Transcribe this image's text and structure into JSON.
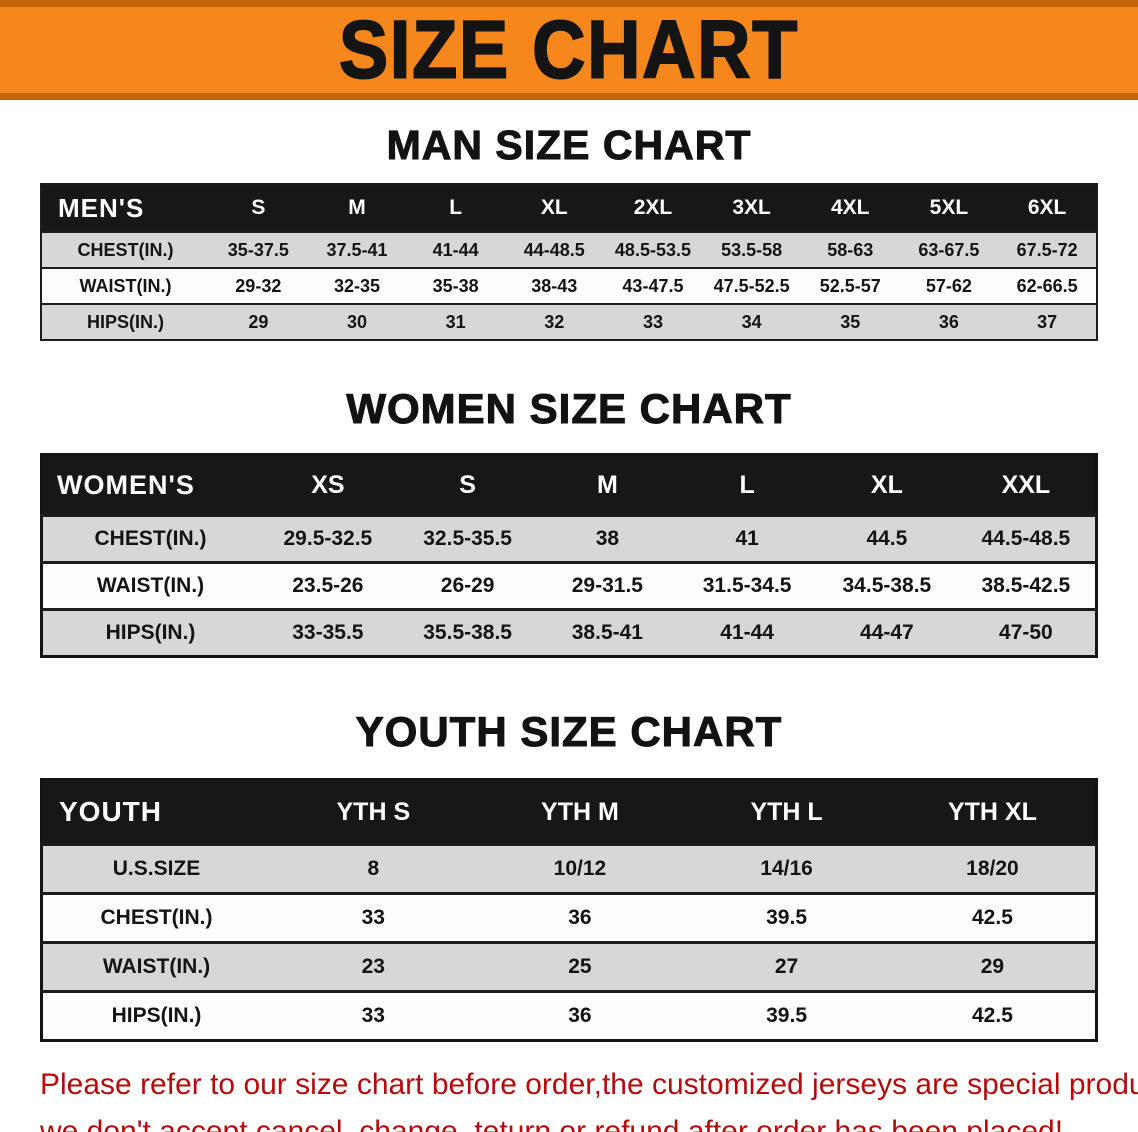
{
  "banner": {
    "title": "SIZE CHART",
    "bg_color": "#f6871d",
    "stripe_color": "#c56708"
  },
  "sections": [
    {
      "heading": "MAN SIZE CHART",
      "header_label": "MEN'S",
      "columns": [
        "S",
        "M",
        "L",
        "XL",
        "2XL",
        "3XL",
        "4XL",
        "5XL",
        "6XL"
      ],
      "rows": [
        {
          "label": "CHEST(IN.)",
          "values": [
            "35-37.5",
            "37.5-41",
            "41-44",
            "44-48.5",
            "48.5-53.5",
            "53.5-58",
            "58-63",
            "63-67.5",
            "67.5-72"
          ]
        },
        {
          "label": "WAIST(IN.)",
          "values": [
            "29-32",
            "32-35",
            "35-38",
            "38-43",
            "43-47.5",
            "47.5-52.5",
            "52.5-57",
            "57-62",
            "62-66.5"
          ]
        },
        {
          "label": "HIPS(IN.)",
          "values": [
            "29",
            "30",
            "31",
            "32",
            "33",
            "34",
            "35",
            "36",
            "37"
          ]
        }
      ]
    },
    {
      "heading": "WOMEN SIZE CHART",
      "header_label": "WOMEN'S",
      "columns": [
        "XS",
        "S",
        "M",
        "L",
        "XL",
        "XXL"
      ],
      "rows": [
        {
          "label": "CHEST(IN.)",
          "values": [
            "29.5-32.5",
            "32.5-35.5",
            "38",
            "41",
            "44.5",
            "44.5-48.5"
          ]
        },
        {
          "label": "WAIST(IN.)",
          "values": [
            "23.5-26",
            "26-29",
            "29-31.5",
            "31.5-34.5",
            "34.5-38.5",
            "38.5-42.5"
          ]
        },
        {
          "label": "HIPS(IN.)",
          "values": [
            "33-35.5",
            "35.5-38.5",
            "38.5-41",
            "41-44",
            "44-47",
            "47-50"
          ]
        }
      ]
    },
    {
      "heading": "YOUTH SIZE CHART",
      "header_label": "YOUTH",
      "columns": [
        "YTH S",
        "YTH M",
        "YTH L",
        "YTH XL"
      ],
      "rows": [
        {
          "label": "U.S.SIZE",
          "values": [
            "8",
            "10/12",
            "14/16",
            "18/20"
          ]
        },
        {
          "label": "CHEST(IN.)",
          "values": [
            "33",
            "36",
            "39.5",
            "42.5"
          ]
        },
        {
          "label": "WAIST(IN.)",
          "values": [
            "23",
            "25",
            "27",
            "29"
          ]
        },
        {
          "label": "HIPS(IN.)",
          "values": [
            "33",
            "36",
            "39.5",
            "42.5"
          ]
        }
      ]
    }
  ],
  "footer": {
    "line1": "Please refer to our size chart before order,the customized jerseys are special products,",
    "line2": "we don't accept cancel, change, teturn or refund after order has been placed!",
    "text_color": "#b40c0c"
  }
}
